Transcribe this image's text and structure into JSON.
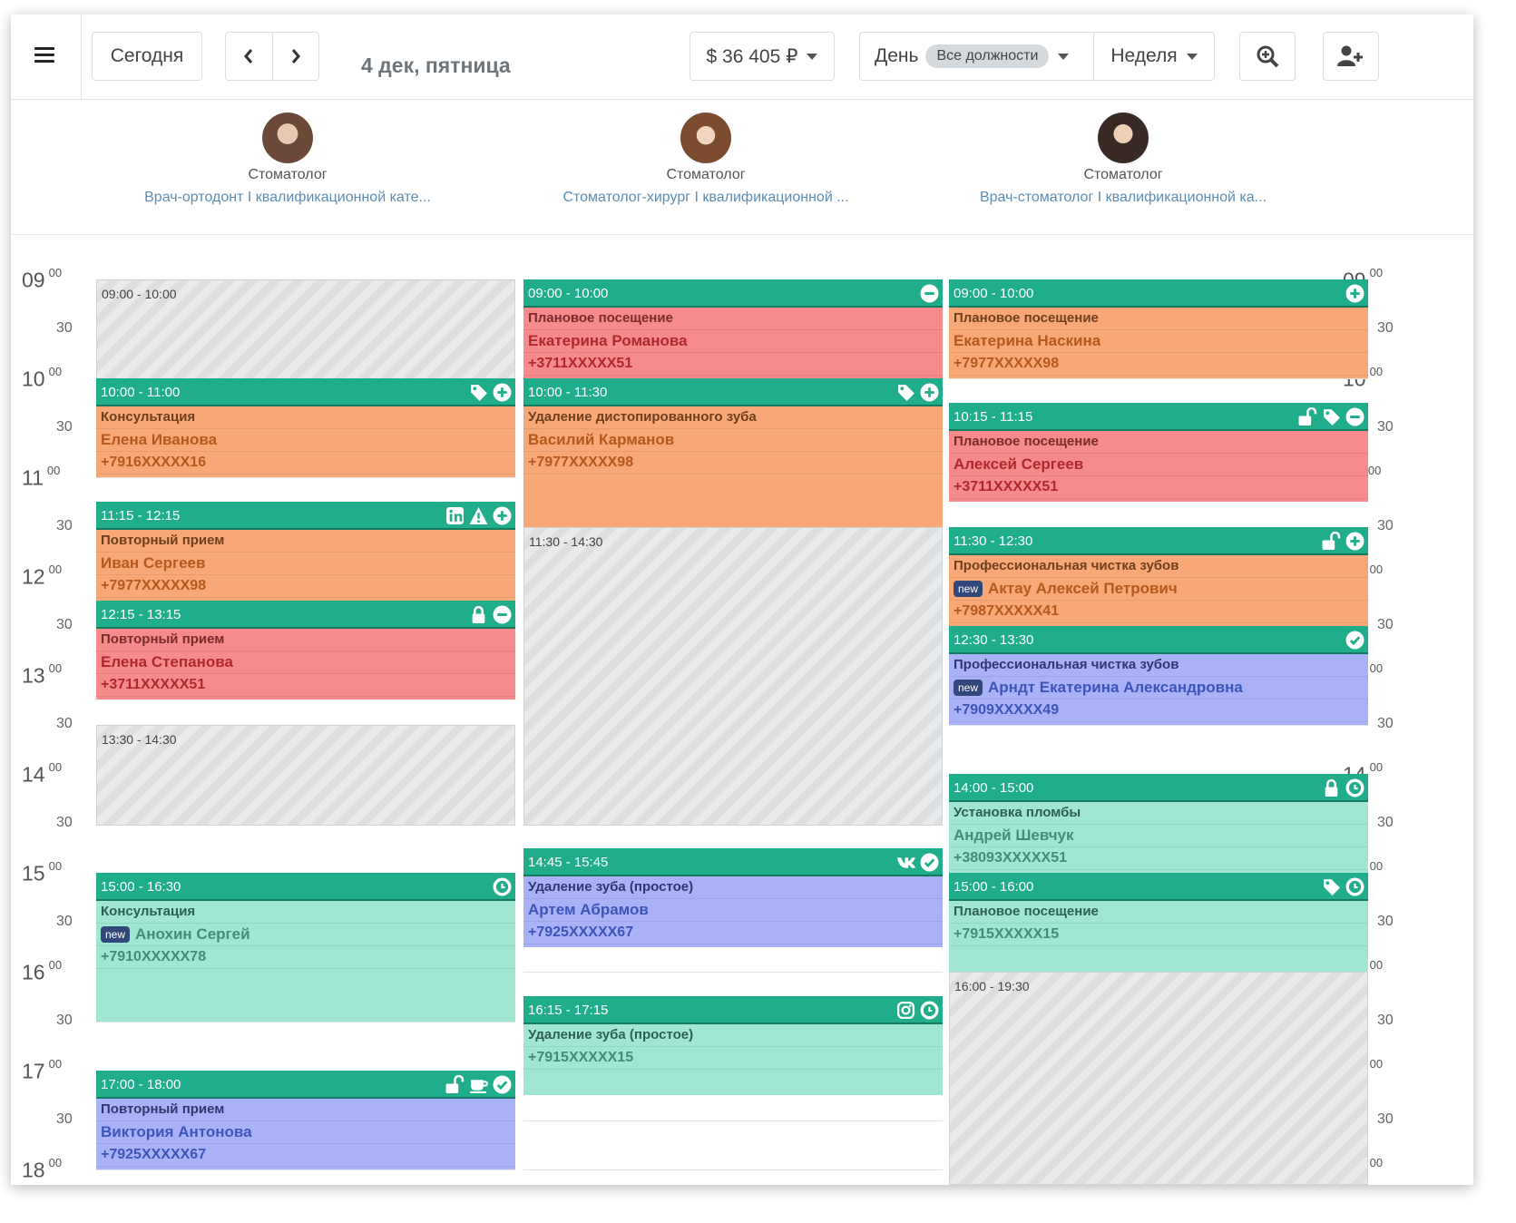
{
  "toolbar": {
    "today": "Сегодня",
    "date": "4 дек, пятница",
    "revenue": "$ 36 405 ₽",
    "day_label": "День",
    "positions_filter": "Все должности",
    "week_label": "Неделя"
  },
  "staff": [
    {
      "role": "Стоматолог",
      "desc": "Врач-ортодонт I квалификационной кате..."
    },
    {
      "role": "Стоматолог",
      "desc": "Стоматолог-хирург I квалификационной ..."
    },
    {
      "role": "Стоматолог",
      "desc": "Врач-стоматолог I квалификационной ка..."
    }
  ],
  "hours": [
    "09",
    "10",
    "11",
    "12",
    "13",
    "14",
    "15",
    "16",
    "17",
    "18"
  ],
  "minutes_00": "00",
  "minutes_30": "30",
  "columns": [
    {
      "free": [
        {
          "time": "09:00 - 10:00"
        },
        {
          "time": "13:30 - 14:30"
        }
      ],
      "appointments": [
        {
          "time": "10:00 - 11:00",
          "service": "Консультация",
          "client": "Елена Иванова",
          "phone": "+7916XXXXX16",
          "color": "orange",
          "icons": [
            "tag-icon",
            "plus-circle-icon"
          ]
        },
        {
          "time": "11:15 - 12:15",
          "service": "Повторный прием",
          "client": "Иван Сергеев",
          "phone": "+7977XXXXX98",
          "color": "orange",
          "icons": [
            "linkedin-icon",
            "warning-icon",
            "plus-circle-icon"
          ]
        },
        {
          "time": "12:15 - 13:15",
          "service": "Повторный прием",
          "client": "Елена Степанова",
          "phone": "+3711XXXXX51",
          "color": "red",
          "icons": [
            "lock-icon",
            "minus-circle-icon"
          ]
        },
        {
          "time": "15:00 - 16:30",
          "service": "Консультация",
          "client": "Анохин Сергей",
          "phone": "+7910XXXXX78",
          "new": "new",
          "color": "teal",
          "icons": [
            "clock-icon"
          ]
        },
        {
          "time": "17:00 - 18:00",
          "service": "Повторный прием",
          "client": "Виктория Антонова",
          "phone": "+7925XXXXX67",
          "color": "blue",
          "icons": [
            "unlock-icon",
            "coffee-icon",
            "check-circle-icon"
          ]
        }
      ]
    },
    {
      "free": [
        {
          "time": "11:30 - 14:30"
        }
      ],
      "appointments": [
        {
          "time": "09:00 - 10:00",
          "service": "Плановое посещение",
          "client": "Екатерина Романова",
          "phone": "+3711XXXXX51",
          "color": "red",
          "icons": [
            "minus-circle-icon"
          ]
        },
        {
          "time": "10:00 - 11:30",
          "service": "Удаление дистопированного зуба",
          "client": "Василий Карманов",
          "phone": "+7977XXXXX98",
          "color": "orange",
          "icons": [
            "tag-icon",
            "plus-circle-icon"
          ]
        },
        {
          "time": "14:45 - 15:45",
          "service": "Удаление зуба (простое)",
          "client": "Артем Абрамов",
          "phone": "+7925XXXXX67",
          "color": "blue",
          "icons": [
            "vk-icon",
            "check-circle-icon"
          ]
        },
        {
          "time": "16:15 - 17:15",
          "service": "Удаление зуба (простое)",
          "client": "",
          "phone": "+7915XXXXX15",
          "color": "teal",
          "icons": [
            "instagram-icon",
            "clock-icon"
          ]
        }
      ]
    },
    {
      "free": [
        {
          "time": "16:00 - 19:30"
        }
      ],
      "appointments": [
        {
          "time": "09:00 - 10:00",
          "service": "Плановое посещение",
          "client": "Екатерина Наскина",
          "phone": "+7977XXXXX98",
          "color": "orange",
          "icons": [
            "plus-circle-icon"
          ]
        },
        {
          "time": "10:15 - 11:15",
          "service": "Плановое посещение",
          "client": "Алексей Сергеев",
          "phone": "+3711XXXXX51",
          "color": "red",
          "icons": [
            "unlock-icon",
            "tag-icon",
            "minus-circle-icon"
          ]
        },
        {
          "time": "11:30 - 12:30",
          "service": "Профессиональная чистка зубов",
          "client": "Актау Алексей Петрович",
          "phone": "+7987XXXXX41",
          "new": "new",
          "color": "orange",
          "icons": [
            "unlock-icon",
            "plus-circle-icon"
          ]
        },
        {
          "time": "12:30 - 13:30",
          "service": "Профессиональная чистка зубов",
          "client": "Арндт Екатерина Александровна",
          "phone": "+7909XXXXX49",
          "new": "new",
          "color": "blue",
          "icons": [
            "check-circle-icon"
          ]
        },
        {
          "time": "14:00 - 15:00",
          "service": "Установка пломбы",
          "client": "Андрей Шевчук",
          "phone": "+38093XXXXX51",
          "color": "teal",
          "icons": [
            "lock-icon",
            "clock-icon"
          ]
        },
        {
          "time": "15:00 - 16:00",
          "service": "Плановое посещение",
          "client": "",
          "phone": "+7915XXXXX15",
          "color": "teal",
          "icons": [
            "tag-icon",
            "clock-icon"
          ]
        }
      ]
    }
  ],
  "colors": {
    "header_green": "#1fad8b",
    "red": "#f78a8a",
    "orange": "#f8a876",
    "blue": "#a9b2f7",
    "teal": "#a0e6d3"
  }
}
